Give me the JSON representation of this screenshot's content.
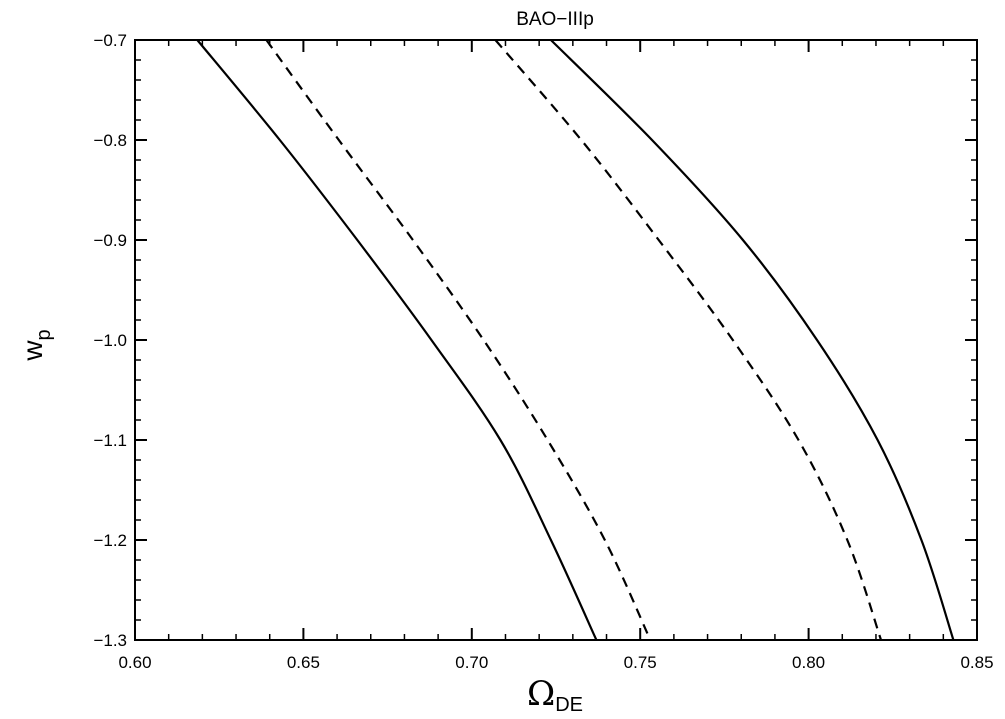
{
  "chart_data": {
    "type": "line",
    "title": "BAO−IIIp",
    "xlabel": {
      "main": "Ω",
      "sub": "DE"
    },
    "ylabel": {
      "main": "w",
      "sub": "p"
    },
    "xlim": [
      0.6,
      0.85
    ],
    "ylim": [
      -1.3,
      -0.7
    ],
    "x_ticks": [
      0.6,
      0.65,
      0.7,
      0.75,
      0.8,
      0.85
    ],
    "x_tick_labels": [
      "0.60",
      "0.65",
      "0.70",
      "0.75",
      "0.80",
      "0.85"
    ],
    "y_ticks": [
      -0.7,
      -0.8,
      -0.9,
      -1.0,
      -1.1,
      -1.2,
      -1.3
    ],
    "y_tick_labels": [
      "−0.7",
      "−0.8",
      "−0.9",
      "−1.0",
      "−1.1",
      "−1.2",
      "−1.3"
    ],
    "x_minor_step": 0.01,
    "y_minor_step": 0.02,
    "grid": false,
    "legend": "none",
    "series": [
      {
        "style": "solid",
        "x": [
          0.6185,
          0.643,
          0.666,
          0.688,
          0.7085,
          0.7235,
          0.737
        ],
        "y": [
          -0.7,
          -0.8,
          -0.9,
          -1.0,
          -1.1,
          -1.2,
          -1.3
        ]
      },
      {
        "style": "dashed",
        "x": [
          0.639,
          0.6605,
          0.6825,
          0.7035,
          0.7225,
          0.7395,
          0.753
        ],
        "y": [
          -0.7,
          -0.8,
          -0.9,
          -1.0,
          -1.1,
          -1.2,
          -1.3
        ]
      },
      {
        "style": "dashed",
        "x": [
          0.707,
          0.7325,
          0.7555,
          0.7775,
          0.797,
          0.8115,
          0.8215
        ],
        "y": [
          -0.7,
          -0.8,
          -0.9,
          -1.0,
          -1.1,
          -1.2,
          -1.3
        ]
      },
      {
        "style": "solid",
        "x": [
          0.7235,
          0.7535,
          0.7805,
          0.8025,
          0.8205,
          0.8335,
          0.843
        ],
        "y": [
          -0.7,
          -0.8,
          -0.9,
          -1.0,
          -1.1,
          -1.2,
          -1.3
        ]
      }
    ]
  }
}
